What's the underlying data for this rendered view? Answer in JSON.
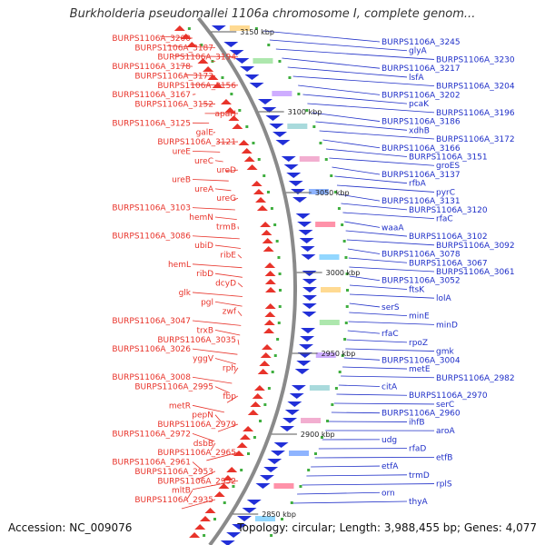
{
  "title": "Burkholderia pseudomallei 1106a chromosome I, complete genom...",
  "accession_text": "Accession: NC_009076",
  "topology_text": "Topology: circular; Length: 3,988,455 bp; Genes: 4,077",
  "colors": {
    "left_label": "#e8332a",
    "right_label": "#1f2fc8",
    "left_arrow": "#e8332a",
    "right_arrow": "#2230d8",
    "backbone": "#7f7f7f",
    "tick_dot": "#3fae3f"
  },
  "kbp_ticks": [
    {
      "label": "3150 kbp"
    },
    {
      "label": "3100 kbp"
    },
    {
      "label": "3050 kbp"
    },
    {
      "label": "3000 kbp"
    },
    {
      "label": "2950 kbp"
    },
    {
      "label": "2900 kbp"
    },
    {
      "label": "2850 kbp"
    }
  ],
  "left_labels": [
    "BURPS1106A_3200",
    "BURPS1106A_3187",
    "BURPS1106A_3194",
    "BURPS1106A_3178",
    "BURPS1106A_3173",
    "BURPS1106A_3156",
    "BURPS1106A_3167",
    "BURPS1106A_3152",
    "apaH",
    "BURPS1106A_3125",
    "galE",
    "BURPS1106A_3121",
    "ureE",
    "ureC",
    "ureD",
    "ureB",
    "ureA",
    "ureG",
    "BURPS1106A_3103",
    "hemN",
    "trmB",
    "BURPS1106A_3086",
    "ubiD",
    "ribE",
    "hemL",
    "ribD",
    "dcyD",
    "glk",
    "pgl",
    "zwf",
    "BURPS1106A_3047",
    "trxB",
    "BURPS1106A_3035",
    "BURPS1106A_3026",
    "yggV",
    "rph",
    "BURPS1106A_3008",
    "BURPS1106A_2995",
    "fbp",
    "metR",
    "pepN",
    "BURPS1106A_2979",
    "BURPS1106A_2972",
    "dsbB",
    "BURPS1106A_2965",
    "BURPS1106A_2961",
    "BURPS1106A_2953",
    "BURPS1106A_2952",
    "mltB",
    "BURPS1106A_2935"
  ],
  "right_labels": [
    "BURPS1106A_3245",
    "glyA",
    "BURPS1106A_3230",
    "BURPS1106A_3217",
    "lsfA",
    "BURPS1106A_3204",
    "BURPS1106A_3202",
    "pcaK",
    "BURPS1106A_3196",
    "BURPS1106A_3186",
    "xdhB",
    "BURPS1106A_3172",
    "BURPS1106A_3166",
    "BURPS1106A_3151",
    "groES",
    "BURPS1106A_3137",
    "rfbA",
    "pyrC",
    "BURPS1106A_3131",
    "BURPS1106A_3120",
    "rfaC",
    "waaA",
    "BURPS1106A_3102",
    "BURPS1106A_3092",
    "BURPS1106A_3078",
    "BURPS1106A_3067",
    "BURPS1106A_3061",
    "BURPS1106A_3052",
    "ftsK",
    "lolA",
    "serS",
    "minE",
    "minD",
    "rfaC",
    "rpoZ",
    "gmk",
    "BURPS1106A_3004",
    "metE",
    "BURPS1106A_2982",
    "citA",
    "BURPS1106A_2970",
    "serC",
    "BURPS1106A_2960",
    "ihfB",
    "aroA",
    "udg",
    "rfaD",
    "etfB",
    "etfA",
    "trmD",
    "rplS",
    "orn",
    "thyA"
  ]
}
